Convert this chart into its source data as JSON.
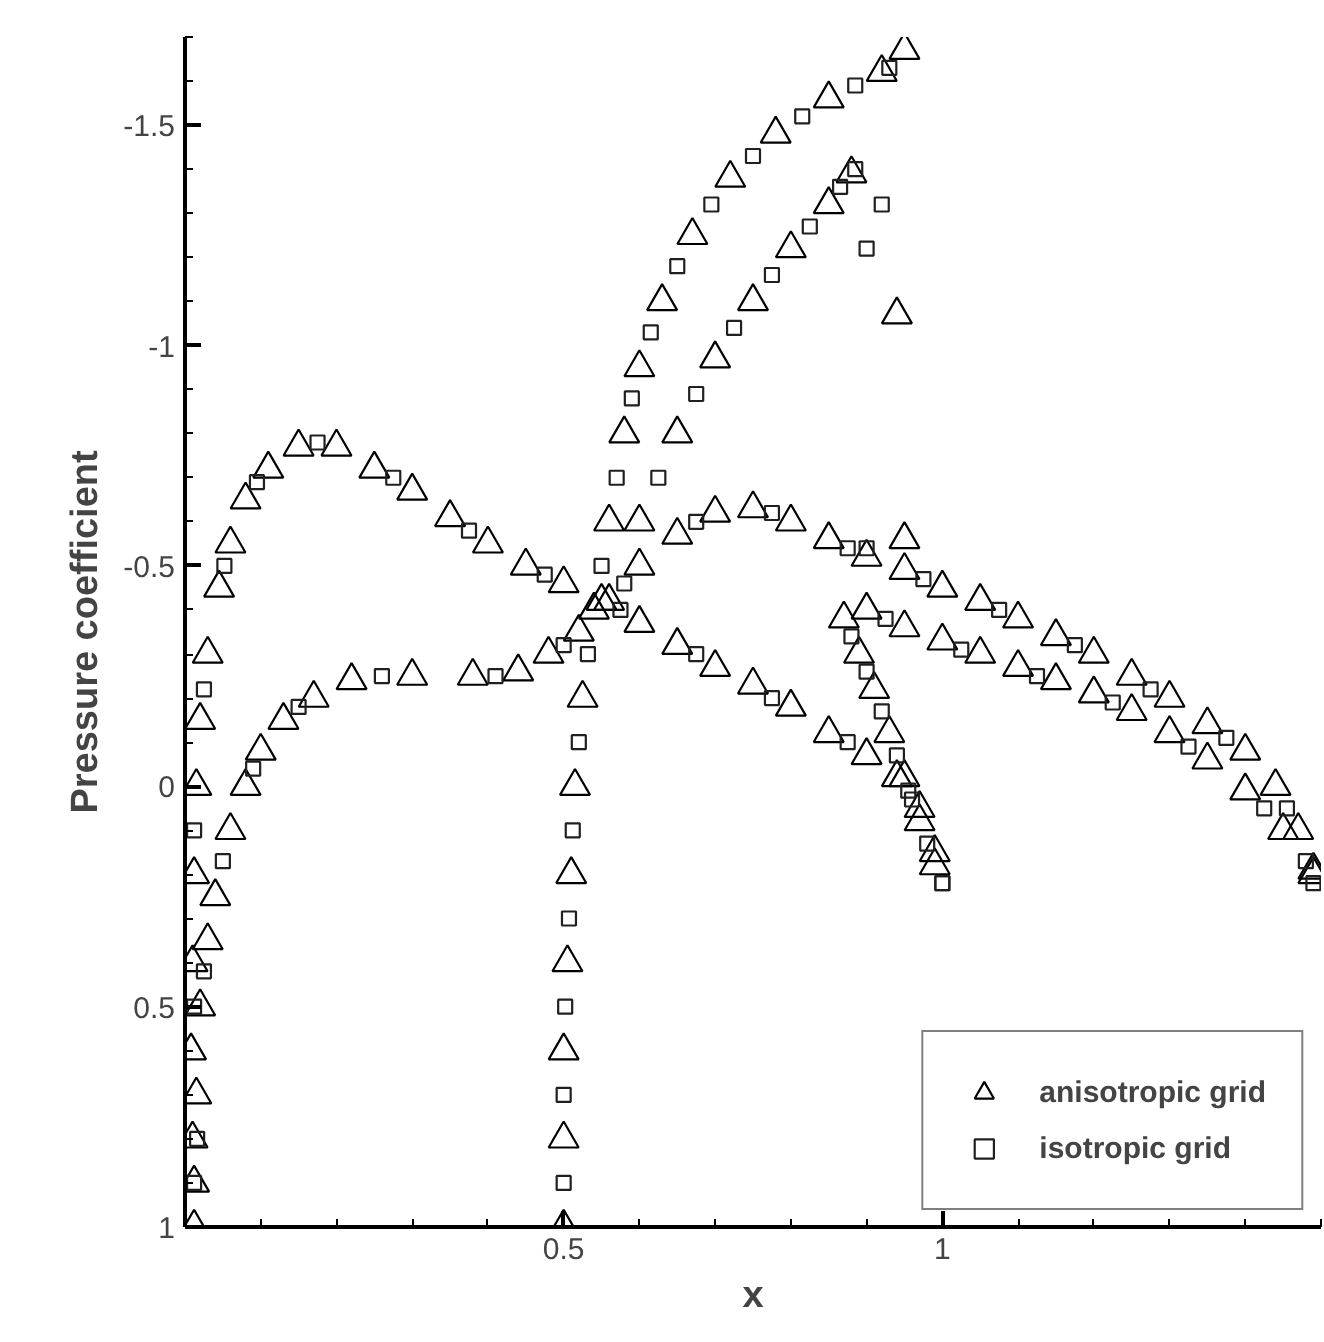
{
  "chart_data": {
    "type": "scatter",
    "xlabel": "x",
    "ylabel": "Pressure coefficient",
    "xlim": [
      0,
      1.5
    ],
    "ylim": [
      1,
      -1.7
    ],
    "xticks": [
      0.5,
      1
    ],
    "yticks": [
      -1.5,
      -1,
      -0.5,
      0,
      0.5,
      1
    ],
    "grid": false,
    "legend": "bottom right",
    "series": [
      {
        "name": "anisotropic grid",
        "color": "#000000",
        "marker": "triangle",
        "x": [
          0.012,
          0.01,
          0.008,
          0.01,
          0.012,
          0.015,
          0.02,
          0.03,
          0.045,
          0.06,
          0.08,
          0.11,
          0.15,
          0.2,
          0.25,
          0.3,
          0.35,
          0.4,
          0.45,
          0.5,
          0.55,
          0.6,
          0.65,
          0.7,
          0.75,
          0.8,
          0.85,
          0.9,
          0.94,
          0.97,
          0.99,
          0.012,
          0.015,
          0.02,
          0.03,
          0.04,
          0.06,
          0.08,
          0.1,
          0.13,
          0.17,
          0.22,
          0.3,
          0.38,
          0.44,
          0.48,
          0.52,
          0.56,
          0.6,
          0.65,
          0.7,
          0.75,
          0.8,
          0.85,
          0.9,
          0.95,
          1.0,
          1.05,
          1.1,
          1.15,
          1.2,
          1.25,
          1.3,
          1.35,
          1.4,
          1.44,
          1.47,
          1.49,
          0.5,
          0.5,
          0.5,
          0.505,
          0.51,
          0.515,
          0.525,
          0.54,
          0.56,
          0.58,
          0.6,
          0.63,
          0.67,
          0.72,
          0.78,
          0.85,
          0.92,
          0.6,
          0.65,
          0.7,
          0.75,
          0.8,
          0.85,
          0.88,
          0.87,
          0.89,
          0.91,
          0.93,
          0.95,
          0.97,
          0.99,
          0.9,
          0.95,
          1.0,
          1.05,
          1.1,
          1.15,
          1.2,
          1.25,
          1.3,
          1.35,
          1.4,
          1.45,
          1.49,
          0.95,
          0.94,
          0.95
        ],
        "values": [
          1.0,
          0.8,
          0.6,
          0.4,
          0.2,
          0.0,
          -0.15,
          -0.3,
          -0.45,
          -0.55,
          -0.65,
          -0.72,
          -0.77,
          -0.77,
          -0.72,
          -0.67,
          -0.61,
          -0.55,
          -0.5,
          -0.46,
          -0.42,
          -0.37,
          -0.32,
          -0.27,
          -0.23,
          -0.18,
          -0.12,
          -0.07,
          -0.02,
          0.05,
          0.15,
          0.9,
          0.7,
          0.5,
          0.35,
          0.25,
          0.1,
          0.0,
          -0.08,
          -0.15,
          -0.2,
          -0.24,
          -0.25,
          -0.25,
          -0.26,
          -0.3,
          -0.35,
          -0.42,
          -0.5,
          -0.57,
          -0.62,
          -0.63,
          -0.6,
          -0.56,
          -0.52,
          -0.49,
          -0.45,
          -0.42,
          -0.38,
          -0.34,
          -0.3,
          -0.25,
          -0.2,
          -0.14,
          -0.08,
          0.0,
          0.1,
          0.2,
          1.0,
          0.8,
          0.6,
          0.4,
          0.2,
          0.0,
          -0.2,
          -0.4,
          -0.6,
          -0.8,
          -0.95,
          -1.1,
          -1.25,
          -1.38,
          -1.48,
          -1.56,
          -1.62,
          -0.6,
          -0.8,
          -0.97,
          -1.1,
          -1.22,
          -1.32,
          -1.39,
          -0.38,
          -0.3,
          -0.22,
          -0.12,
          -0.02,
          0.08,
          0.18,
          -0.4,
          -0.36,
          -0.33,
          -0.3,
          -0.27,
          -0.24,
          -0.21,
          -0.17,
          -0.12,
          -0.06,
          0.01,
          0.1,
          0.19,
          -1.67,
          -1.07,
          -0.56
        ]
      },
      {
        "name": "isotropic grid",
        "color": "#202020",
        "marker": "square",
        "x": [
          0.012,
          0.012,
          0.012,
          0.025,
          0.052,
          0.095,
          0.175,
          0.275,
          0.375,
          0.475,
          0.575,
          0.675,
          0.775,
          0.875,
          0.955,
          1.0,
          0.016,
          0.025,
          0.05,
          0.09,
          0.15,
          0.26,
          0.41,
          0.5,
          0.58,
          0.675,
          0.775,
          0.875,
          0.975,
          1.075,
          1.175,
          1.275,
          1.375,
          1.455,
          1.49,
          0.5,
          0.5,
          0.502,
          0.507,
          0.512,
          0.52,
          0.532,
          0.55,
          0.57,
          0.59,
          0.615,
          0.65,
          0.695,
          0.75,
          0.815,
          0.885,
          0.93,
          0.625,
          0.675,
          0.725,
          0.775,
          0.825,
          0.865,
          0.885,
          0.88,
          0.9,
          0.92,
          0.94,
          0.96,
          0.98,
          1.0,
          0.925,
          1.025,
          1.125,
          1.225,
          1.325,
          1.425,
          1.48,
          0.92,
          0.9,
          0.9
        ],
        "values": [
          0.9,
          0.5,
          0.1,
          -0.22,
          -0.5,
          -0.69,
          -0.78,
          -0.7,
          -0.58,
          -0.48,
          -0.4,
          -0.3,
          -0.2,
          -0.1,
          0.01,
          0.22,
          0.8,
          0.42,
          0.17,
          -0.04,
          -0.18,
          -0.25,
          -0.25,
          -0.32,
          -0.46,
          -0.6,
          -0.62,
          -0.54,
          -0.47,
          -0.4,
          -0.32,
          -0.22,
          -0.11,
          0.05,
          0.22,
          0.9,
          0.7,
          0.5,
          0.3,
          0.1,
          -0.1,
          -0.3,
          -0.5,
          -0.7,
          -0.88,
          -1.03,
          -1.18,
          -1.32,
          -1.43,
          -1.52,
          -1.59,
          -1.63,
          -0.7,
          -0.89,
          -1.04,
          -1.16,
          -1.27,
          -1.36,
          -1.4,
          -0.34,
          -0.26,
          -0.17,
          -0.07,
          0.03,
          0.13,
          0.22,
          -0.38,
          -0.31,
          -0.25,
          -0.19,
          -0.09,
          0.05,
          0.17,
          -1.32,
          -1.22,
          -0.54
        ]
      }
    ]
  }
}
